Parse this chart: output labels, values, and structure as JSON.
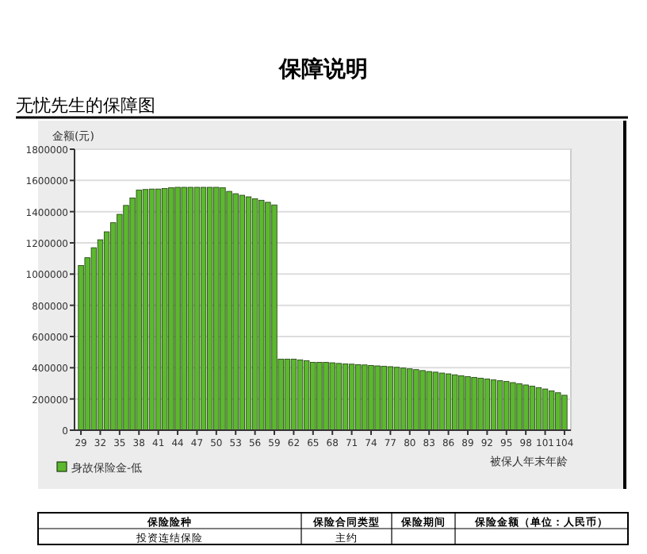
{
  "chart_data": {
    "type": "bar",
    "title": "保障说明",
    "subtitle": "无忧先生的保障图",
    "ylabel": "金额(元)",
    "xlabel": "被保人年末年龄",
    "categories": [
      "29",
      null,
      null,
      "32",
      null,
      null,
      "35",
      null,
      null,
      "38",
      null,
      null,
      "41",
      null,
      null,
      "44",
      null,
      null,
      "47",
      null,
      null,
      "50",
      null,
      null,
      "53",
      null,
      null,
      "56",
      null,
      null,
      "59",
      null,
      null,
      "62",
      null,
      null,
      "65",
      null,
      null,
      "68",
      null,
      null,
      "71",
      null,
      null,
      "74",
      null,
      null,
      "77",
      null,
      null,
      "80",
      null,
      null,
      "83",
      null,
      null,
      "86",
      null,
      null,
      "89",
      null,
      null,
      "92",
      null,
      null,
      "95",
      null,
      null,
      "98",
      null,
      null,
      "101",
      null,
      null,
      "104"
    ],
    "series": [
      {
        "name": "身故保险金-低",
        "color": "#5cb82e",
        "values": [
          1055000,
          1105000,
          1169000,
          1220000,
          1271000,
          1329000,
          1383000,
          1440000,
          1488000,
          1539000,
          1542000,
          1545000,
          1545000,
          1548000,
          1553000,
          1556000,
          1556000,
          1556000,
          1556000,
          1556000,
          1556000,
          1556000,
          1553000,
          1530000,
          1515000,
          1505000,
          1495000,
          1483000,
          1473000,
          1460000,
          1443000,
          455000,
          455000,
          455000,
          450000,
          445000,
          435000,
          435000,
          435000,
          432000,
          428000,
          425000,
          423000,
          420000,
          418000,
          415000,
          412000,
          410000,
          407000,
          403000,
          398000,
          393000,
          388000,
          382000,
          376000,
          372000,
          366000,
          361000,
          355000,
          349000,
          343000,
          338000,
          333000,
          328000,
          322000,
          317000,
          312000,
          305000,
          298000,
          290000,
          282000,
          273000,
          264000,
          252000,
          240000,
          224000
        ]
      }
    ],
    "ylim": [
      0,
      1800000
    ],
    "yticks": [
      0,
      200000,
      400000,
      600000,
      800000,
      1000000,
      1200000,
      1400000,
      1600000,
      1800000
    ],
    "grid": "y",
    "legend": "bottom left",
    "annotations": [
      "保险险种",
      "保险合同类型",
      "保险期间",
      "保险金额（单位：人民币）",
      "投资连结保险",
      "主约"
    ]
  }
}
